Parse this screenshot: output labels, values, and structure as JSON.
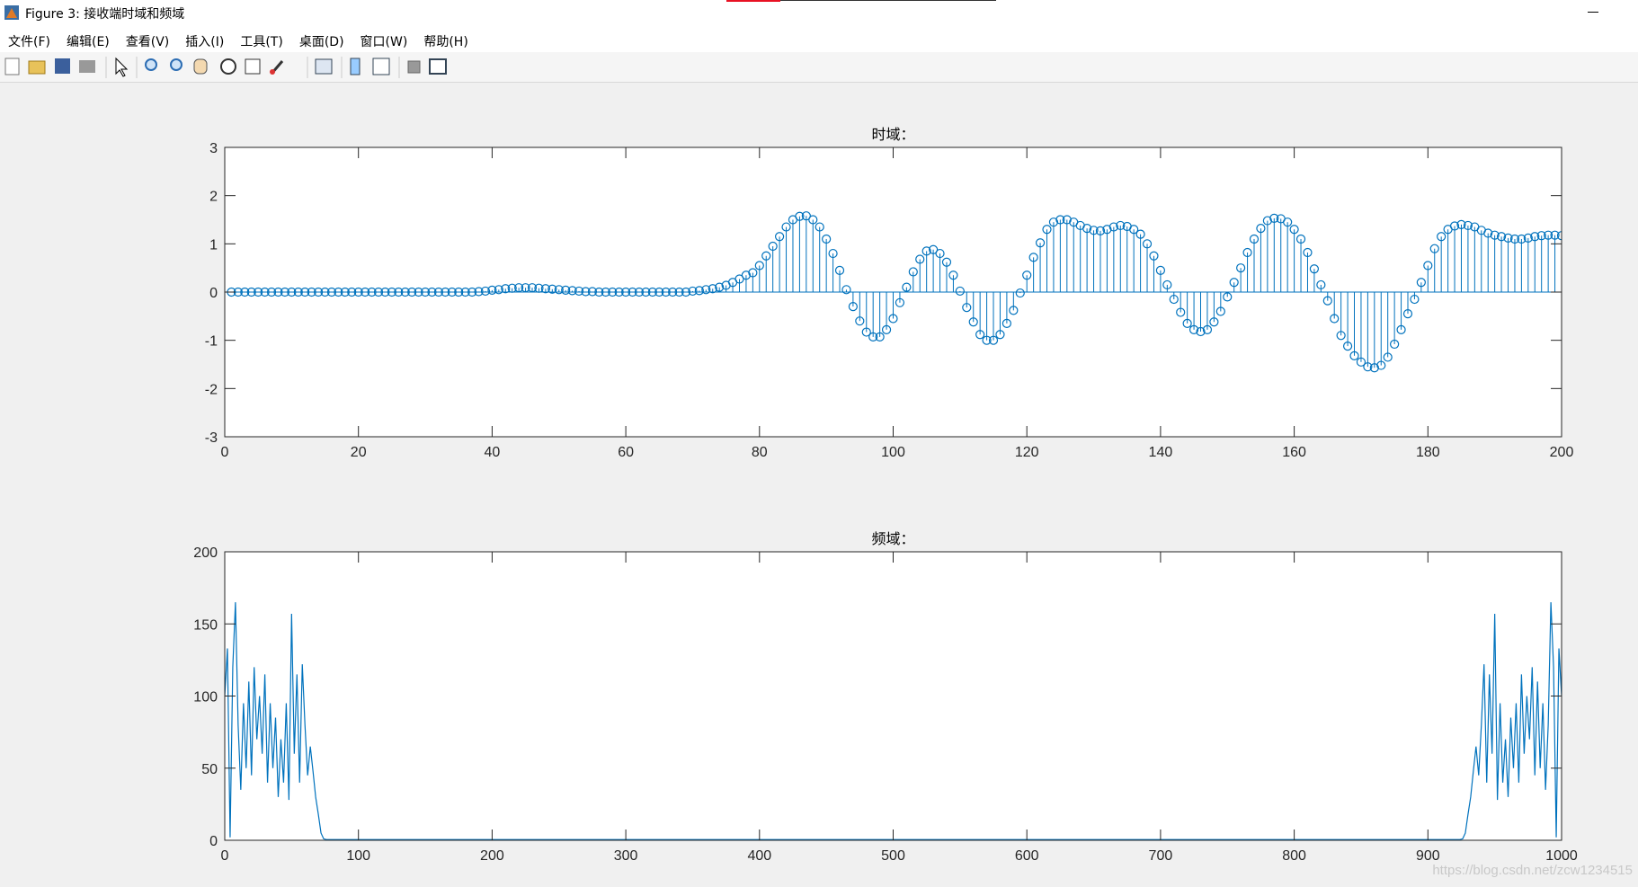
{
  "window": {
    "title": "Figure 3: 接收端时域和频域"
  },
  "menu": [
    "文件(F)",
    "编辑(E)",
    "查看(V)",
    "插入(I)",
    "工具(T)",
    "桌面(D)",
    "窗口(W)",
    "帮助(H)"
  ],
  "watermark": "https://blog.csdn.net/zcw1234515",
  "chart_data": [
    {
      "type": "stem",
      "title": "时域：",
      "color": "#0072bd",
      "xlim": [
        0,
        200
      ],
      "ylim": [
        -3,
        3
      ],
      "xticks": [
        0,
        20,
        40,
        60,
        80,
        100,
        120,
        140,
        160,
        180,
        200
      ],
      "yticks": [
        -3,
        -2,
        -1,
        0,
        1,
        2,
        3
      ],
      "x": [
        1,
        2,
        3,
        4,
        5,
        6,
        7,
        8,
        9,
        10,
        11,
        12,
        13,
        14,
        15,
        16,
        17,
        18,
        19,
        20,
        21,
        22,
        23,
        24,
        25,
        26,
        27,
        28,
        29,
        30,
        31,
        32,
        33,
        34,
        35,
        36,
        37,
        38,
        39,
        40,
        41,
        42,
        43,
        44,
        45,
        46,
        47,
        48,
        49,
        50,
        51,
        52,
        53,
        54,
        55,
        56,
        57,
        58,
        59,
        60,
        61,
        62,
        63,
        64,
        65,
        66,
        67,
        68,
        69,
        70,
        71,
        72,
        73,
        74,
        75,
        76,
        77,
        78,
        79,
        80,
        81,
        82,
        83,
        84,
        85,
        86,
        87,
        88,
        89,
        90,
        91,
        92,
        93,
        94,
        95,
        96,
        97,
        98,
        99,
        100,
        101,
        102,
        103,
        104,
        105,
        106,
        107,
        108,
        109,
        110,
        111,
        112,
        113,
        114,
        115,
        116,
        117,
        118,
        119,
        120,
        121,
        122,
        123,
        124,
        125,
        126,
        127,
        128,
        129,
        130,
        131,
        132,
        133,
        134,
        135,
        136,
        137,
        138,
        139,
        140,
        141,
        142,
        143,
        144,
        145,
        146,
        147,
        148,
        149,
        150,
        151,
        152,
        153,
        154,
        155,
        156,
        157,
        158,
        159,
        160,
        161,
        162,
        163,
        164,
        165,
        166,
        167,
        168,
        169,
        170,
        171,
        172,
        173,
        174,
        175,
        176,
        177,
        178,
        179,
        180,
        181,
        182,
        183,
        184,
        185,
        186,
        187,
        188,
        189,
        190,
        191,
        192,
        193,
        194,
        195,
        196,
        197,
        198,
        199,
        200
      ],
      "values": [
        0,
        0,
        0,
        0,
        0,
        0,
        0,
        0,
        0,
        0,
        0,
        0,
        0,
        0,
        0,
        0,
        0,
        0,
        0,
        0,
        0,
        0,
        0,
        0,
        0,
        0,
        0,
        0,
        0,
        0,
        0,
        0,
        0,
        0,
        0,
        0,
        0,
        0.01,
        0.02,
        0.04,
        0.05,
        0.07,
        0.08,
        0.09,
        0.09,
        0.09,
        0.08,
        0.07,
        0.06,
        0.05,
        0.04,
        0.03,
        0.02,
        0.01,
        0.01,
        0,
        0,
        0,
        0,
        0,
        0,
        0,
        0,
        0,
        0,
        0,
        0,
        0,
        0,
        0.02,
        0.03,
        0.05,
        0.07,
        0.1,
        0.14,
        0.2,
        0.27,
        0.35,
        0.4,
        0.55,
        0.75,
        0.95,
        1.15,
        1.35,
        1.5,
        1.57,
        1.58,
        1.5,
        1.35,
        1.1,
        0.8,
        0.45,
        0.05,
        -0.3,
        -0.6,
        -0.83,
        -0.93,
        -0.93,
        -0.78,
        -0.55,
        -0.22,
        0.1,
        0.42,
        0.68,
        0.85,
        0.88,
        0.8,
        0.62,
        0.35,
        0.02,
        -0.32,
        -0.62,
        -0.88,
        -1.0,
        -1.0,
        -0.88,
        -0.65,
        -0.38,
        -0.02,
        0.35,
        0.72,
        1.02,
        1.3,
        1.45,
        1.5,
        1.5,
        1.45,
        1.38,
        1.32,
        1.28,
        1.27,
        1.3,
        1.35,
        1.38,
        1.36,
        1.3,
        1.2,
        1.0,
        0.75,
        0.45,
        0.15,
        -0.15,
        -0.42,
        -0.65,
        -0.78,
        -0.82,
        -0.78,
        -0.62,
        -0.4,
        -0.1,
        0.2,
        0.5,
        0.82,
        1.1,
        1.32,
        1.48,
        1.53,
        1.52,
        1.45,
        1.3,
        1.1,
        0.82,
        0.48,
        0.15,
        -0.18,
        -0.55,
        -0.9,
        -1.12,
        -1.32,
        -1.45,
        -1.55,
        -1.57,
        -1.52,
        -1.35,
        -1.08,
        -0.78,
        -0.45,
        -0.15,
        0.2,
        0.55,
        0.9,
        1.15,
        1.3,
        1.37,
        1.4,
        1.38,
        1.35,
        1.28,
        1.22,
        1.18,
        1.15,
        1.12,
        1.1,
        1.1,
        1.12,
        1.15,
        1.17,
        1.18,
        1.18,
        1.17
      ]
    },
    {
      "type": "line",
      "title": "频域：",
      "color": "#0072bd",
      "xlim": [
        0,
        1000
      ],
      "ylim": [
        0,
        200
      ],
      "xticks": [
        0,
        100,
        200,
        300,
        400,
        500,
        600,
        700,
        800,
        900,
        1000
      ],
      "yticks": [
        0,
        50,
        100,
        150,
        200
      ],
      "x": [
        0,
        2,
        4,
        6,
        8,
        10,
        12,
        14,
        16,
        18,
        20,
        22,
        24,
        26,
        28,
        30,
        32,
        34,
        36,
        38,
        40,
        42,
        44,
        46,
        48,
        50,
        52,
        54,
        56,
        58,
        60,
        62,
        64,
        66,
        68,
        70,
        72,
        74,
        76,
        78,
        80,
        100,
        200,
        300,
        400,
        500,
        600,
        700,
        800,
        900,
        920,
        922,
        924,
        926,
        928,
        930,
        932,
        934,
        936,
        938,
        940,
        942,
        944,
        946,
        948,
        950,
        952,
        954,
        956,
        958,
        960,
        962,
        964,
        966,
        968,
        970,
        972,
        974,
        976,
        978,
        980,
        982,
        984,
        986,
        988,
        990,
        992,
        994,
        996,
        998,
        1000
      ],
      "values": [
        100,
        133,
        2,
        120,
        165,
        80,
        35,
        95,
        50,
        110,
        45,
        120,
        70,
        100,
        60,
        115,
        40,
        95,
        50,
        85,
        30,
        70,
        40,
        95,
        28,
        157,
        60,
        115,
        40,
        122,
        80,
        45,
        65,
        48,
        30,
        18,
        5,
        1,
        0.5,
        0.5,
        0.5,
        0.5,
        0.5,
        0.5,
        0.5,
        0.5,
        0.5,
        0.5,
        0.5,
        0.5,
        0.5,
        0.5,
        0.5,
        1,
        5,
        18,
        30,
        48,
        65,
        45,
        80,
        122,
        40,
        115,
        60,
        157,
        28,
        95,
        40,
        70,
        30,
        85,
        50,
        95,
        40,
        115,
        60,
        100,
        70,
        120,
        45,
        110,
        50,
        95,
        35,
        80,
        165,
        120,
        2,
        133,
        100
      ]
    }
  ]
}
